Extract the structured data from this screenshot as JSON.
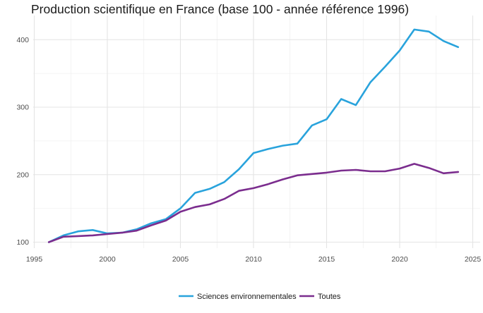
{
  "chart_data": {
    "type": "line",
    "title": "Production scientifique en France (base 100 - année référence 1996)",
    "xlabel": "",
    "ylabel": "",
    "xlim": [
      1995,
      2025
    ],
    "ylim": [
      100,
      420
    ],
    "x_ticks": [
      1995,
      2000,
      2005,
      2010,
      2015,
      2020,
      2025
    ],
    "y_ticks": [
      100,
      200,
      300,
      400
    ],
    "grid": true,
    "legend_position": "bottom",
    "series": [
      {
        "name": "Sciences environnementales",
        "color": "#29a3dc",
        "x": [
          1996,
          1997,
          1998,
          1999,
          2000,
          2001,
          2002,
          2003,
          2004,
          2005,
          2006,
          2007,
          2008,
          2009,
          2010,
          2011,
          2012,
          2013,
          2014,
          2015,
          2016,
          2017,
          2018,
          2019,
          2020,
          2021,
          2022,
          2023,
          2024
        ],
        "values": [
          100,
          110,
          116,
          118,
          113,
          114,
          119,
          128,
          134,
          150,
          173,
          179,
          189,
          208,
          232,
          238,
          243,
          246,
          273,
          282,
          312,
          303,
          337,
          360,
          384,
          415,
          412,
          398,
          389
        ]
      },
      {
        "name": "Toutes",
        "color": "#7b2d8e",
        "x": [
          1996,
          1997,
          1998,
          1999,
          2000,
          2001,
          2002,
          2003,
          2004,
          2005,
          2006,
          2007,
          2008,
          2009,
          2010,
          2011,
          2012,
          2013,
          2014,
          2015,
          2016,
          2017,
          2018,
          2019,
          2020,
          2021,
          2022,
          2023,
          2024
        ],
        "values": [
          100,
          108,
          109,
          110,
          112,
          114,
          117,
          125,
          132,
          145,
          152,
          156,
          164,
          176,
          180,
          186,
          193,
          199,
          201,
          203,
          206,
          207,
          205,
          205,
          209,
          216,
          210,
          202,
          204
        ]
      }
    ]
  }
}
